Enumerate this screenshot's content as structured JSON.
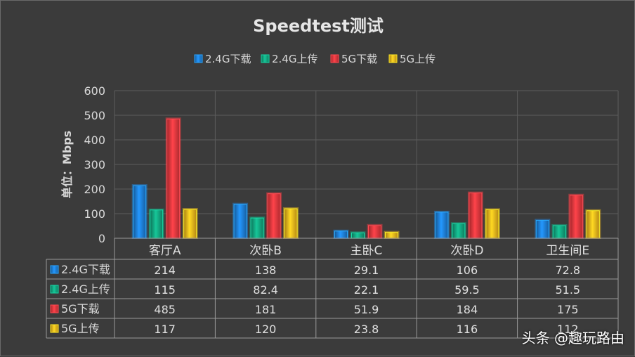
{
  "chart_data": {
    "type": "bar",
    "title": "Speedtest测试",
    "ylabel": "单位：Mbps",
    "xlabel": "",
    "ylim": [
      0,
      600
    ],
    "yticks": [
      0,
      100,
      200,
      300,
      400,
      500,
      600
    ],
    "categories": [
      "客厅A",
      "次卧B",
      "主卧C",
      "次卧D",
      "卫生间E"
    ],
    "legend_position": "top",
    "grid": true,
    "series": [
      {
        "name": "2.4G下载",
        "color": "#1e7fd8",
        "values": [
          214,
          138,
          29.1,
          106,
          72.8
        ],
        "labels": [
          "214",
          "138",
          "29.1",
          "106",
          "72.8"
        ]
      },
      {
        "name": "2.4G上传",
        "color": "#12a57f",
        "values": [
          115,
          82.4,
          22.1,
          59.5,
          51.5
        ],
        "labels": [
          "115",
          "82.4",
          "22.1",
          "59.5",
          "51.5"
        ]
      },
      {
        "name": "5G下载",
        "color": "#e8383e",
        "values": [
          485,
          181,
          51.9,
          184,
          175
        ],
        "labels": [
          "485",
          "181",
          "51.9",
          "184",
          "175"
        ]
      },
      {
        "name": "5G上传",
        "color": "#f2b51c",
        "values": [
          117,
          120,
          23.8,
          116,
          112
        ],
        "labels": [
          "117",
          "120",
          "23.8",
          "116",
          "112"
        ]
      }
    ]
  },
  "watermark": "头条 @趣玩路由"
}
